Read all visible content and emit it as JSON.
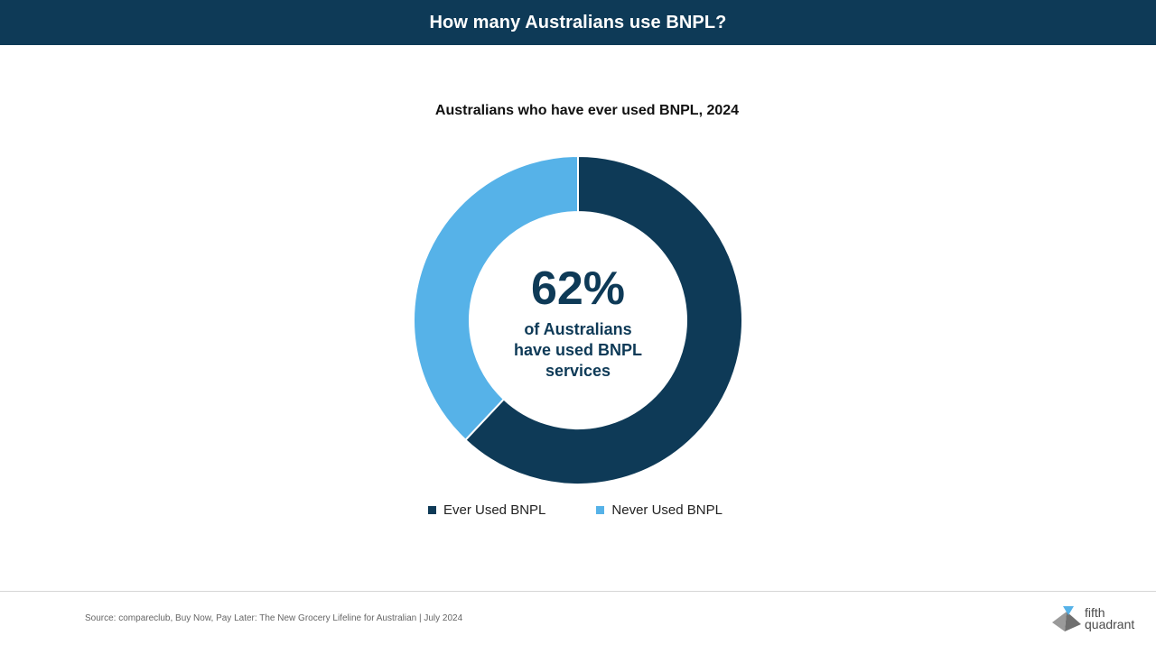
{
  "header": {
    "title": "How many Australians use BNPL?"
  },
  "chart_data": {
    "type": "pie",
    "title": "Australians who have ever used BNPL, 2024",
    "categories": [
      "Ever Used BNPL",
      "Never Used BNPL"
    ],
    "values": [
      62,
      38
    ],
    "colors": [
      "#0e3a57",
      "#56b2e8"
    ],
    "center_value": "62%",
    "center_caption": "of Australians have used BNPL services",
    "legend_position": "bottom"
  },
  "legend": {
    "items": [
      {
        "label": "Ever Used BNPL",
        "color": "#0e3a57"
      },
      {
        "label": "Never Used BNPL",
        "color": "#56b2e8"
      }
    ]
  },
  "footer": {
    "source": "Source: compareclub, Buy Now, Pay Later: The New Grocery Lifeline for Australian | July 2024",
    "logo_line1": "fifth",
    "logo_line2": "quadrant"
  }
}
